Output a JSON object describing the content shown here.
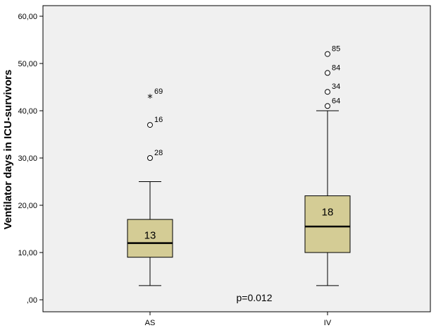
{
  "chart_data": {
    "type": "boxplot",
    "ylabel": "Ventilator days in ICU-survivors",
    "xlabel": "",
    "ylim": [
      0,
      60
    ],
    "y_ticks": [
      "60,00",
      "50,00",
      "40,00",
      "30,00",
      "20,00",
      "10,00",
      ",00"
    ],
    "y_tick_values": [
      60,
      50,
      40,
      30,
      20,
      10,
      0
    ],
    "categories": [
      "AS",
      "IV"
    ],
    "boxes": [
      {
        "category": "AS",
        "whisker_low": 3,
        "q1": 9,
        "median": 12,
        "q3": 17,
        "whisker_high": 25,
        "box_label": "13",
        "outliers": [
          {
            "value": 30,
            "label": "28",
            "marker": "circle"
          },
          {
            "value": 37,
            "label": "16",
            "marker": "circle"
          },
          {
            "value": 43,
            "label": "69",
            "marker": "star"
          }
        ]
      },
      {
        "category": "IV",
        "whisker_low": 3,
        "q1": 10,
        "median": 15.5,
        "q3": 22,
        "whisker_high": 40,
        "box_label": "18",
        "outliers": [
          {
            "value": 41,
            "label": "64",
            "marker": "circle"
          },
          {
            "value": 44,
            "label": "34",
            "marker": "circle"
          },
          {
            "value": 48,
            "label": "84",
            "marker": "circle"
          },
          {
            "value": 52,
            "label": "85",
            "marker": "circle"
          }
        ]
      }
    ],
    "annotation": "p=0.012",
    "colors": {
      "plot_background": "#f0f0f0",
      "box_fill": "#d4cc95",
      "line": "#000000"
    }
  }
}
